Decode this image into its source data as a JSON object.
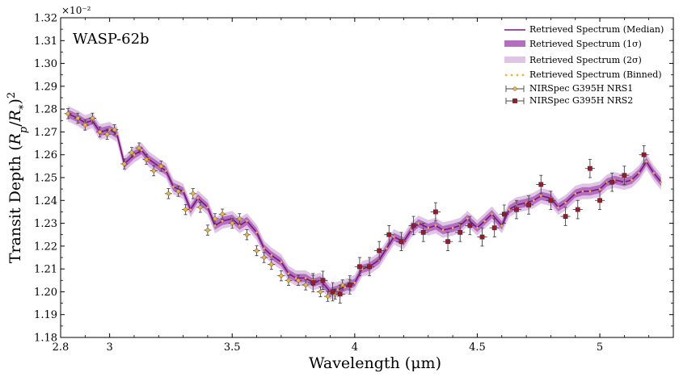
{
  "chart_data": {
    "type": "line",
    "annotation": "WASP-62b",
    "xlabel": "Wavelength (μm)",
    "ylabel": "Transit Depth (R_p/R_*)^2",
    "y_multiplier": "×10⁻²",
    "xlim": [
      2.8,
      5.3
    ],
    "ylim": [
      1.18,
      1.32
    ],
    "x_ticks": [
      2.8,
      3,
      3.5,
      4,
      4.5,
      5
    ],
    "x_tick_labels": [
      "2.8",
      "3",
      "3.5",
      "4",
      "4.5",
      "5"
    ],
    "y_ticks": [
      1.18,
      1.19,
      1.2,
      1.21,
      1.22,
      1.23,
      1.24,
      1.25,
      1.26,
      1.27,
      1.28,
      1.29,
      1.3,
      1.31,
      1.32
    ],
    "y_tick_labels": [
      "1.18",
      "1.19",
      "1.20",
      "1.21",
      "1.22",
      "1.23",
      "1.24",
      "1.25",
      "1.26",
      "1.27",
      "1.28",
      "1.29",
      "1.30",
      "1.31",
      "1.32"
    ],
    "legend": {
      "position": "top-right",
      "entries": [
        "Retrieved Spectrum (Median)",
        "Retrieved Spectrum (1σ)",
        "Retrieved Spectrum (2σ)",
        "Retrieved Spectrum (Binned)",
        "NIRSpec G395H NRS1",
        "NIRSpec G395H NRS2"
      ]
    },
    "colors": {
      "median": "#7b1680",
      "sigma1": "#b56fc0",
      "sigma2": "#dfc4e6",
      "binned": "#f2b233",
      "nrs1": "#f2b233",
      "nrs2": "#a8122c"
    },
    "model": {
      "x": [
        2.83,
        2.87,
        2.9,
        2.93,
        2.96,
        3.0,
        3.03,
        3.06,
        3.1,
        3.13,
        3.16,
        3.2,
        3.23,
        3.26,
        3.3,
        3.33,
        3.36,
        3.4,
        3.43,
        3.46,
        3.5,
        3.53,
        3.56,
        3.6,
        3.63,
        3.66,
        3.7,
        3.73,
        3.76,
        3.8,
        3.83,
        3.86,
        3.9,
        3.93,
        3.96,
        4.0,
        4.03,
        4.06,
        4.1,
        4.13,
        4.16,
        4.2,
        4.23,
        4.26,
        4.3,
        4.33,
        4.36,
        4.4,
        4.43,
        4.46,
        4.5,
        4.53,
        4.56,
        4.6,
        4.63,
        4.66,
        4.7,
        4.73,
        4.76,
        4.8,
        4.83,
        4.86,
        4.9,
        4.93,
        4.96,
        5.0,
        5.03,
        5.06,
        5.1,
        5.13,
        5.16,
        5.19,
        5.22,
        5.25
      ],
      "median": [
        1.278,
        1.276,
        1.274,
        1.275,
        1.27,
        1.271,
        1.269,
        1.256,
        1.26,
        1.262,
        1.258,
        1.255,
        1.253,
        1.246,
        1.244,
        1.236,
        1.241,
        1.237,
        1.229,
        1.231,
        1.232,
        1.229,
        1.231,
        1.226,
        1.219,
        1.216,
        1.213,
        1.208,
        1.206,
        1.206,
        1.204,
        1.205,
        1.2,
        1.201,
        1.202,
        1.204,
        1.21,
        1.211,
        1.214,
        1.219,
        1.224,
        1.222,
        1.227,
        1.23,
        1.228,
        1.229,
        1.227,
        1.228,
        1.229,
        1.232,
        1.228,
        1.231,
        1.234,
        1.229,
        1.236,
        1.238,
        1.239,
        1.24,
        1.242,
        1.241,
        1.237,
        1.239,
        1.243,
        1.244,
        1.244,
        1.245,
        1.248,
        1.249,
        1.248,
        1.249,
        1.252,
        1.257,
        1.252,
        1.248
      ],
      "sigma1_halfwidth": 0.0018,
      "sigma2_halfwidth": 0.0034
    },
    "series": [
      {
        "name": "NIRSpec G395H NRS1",
        "x": [
          2.83,
          2.87,
          2.9,
          2.93,
          2.96,
          2.99,
          3.02,
          3.06,
          3.09,
          3.12,
          3.15,
          3.18,
          3.21,
          3.24,
          3.28,
          3.31,
          3.34,
          3.37,
          3.4,
          3.43,
          3.46,
          3.5,
          3.53,
          3.56,
          3.6,
          3.63,
          3.66,
          3.7,
          3.73,
          3.77,
          3.8,
          3.83,
          3.86,
          3.89,
          3.92,
          3.95,
          3.98
        ],
        "y": [
          1.278,
          1.276,
          1.273,
          1.276,
          1.27,
          1.269,
          1.271,
          1.256,
          1.261,
          1.263,
          1.258,
          1.253,
          1.255,
          1.243,
          1.244,
          1.236,
          1.243,
          1.237,
          1.227,
          1.232,
          1.234,
          1.23,
          1.232,
          1.225,
          1.218,
          1.215,
          1.212,
          1.207,
          1.205,
          1.205,
          1.203,
          1.205,
          1.2,
          1.198,
          1.199,
          1.203,
          1.203
        ],
        "yerr": 0.0022,
        "xerr": 0.015
      },
      {
        "name": "NIRSpec G395H NRS2",
        "x": [
          3.83,
          3.87,
          3.91,
          3.94,
          3.98,
          4.02,
          4.06,
          4.1,
          4.14,
          4.19,
          4.24,
          4.28,
          4.33,
          4.38,
          4.43,
          4.47,
          4.52,
          4.57,
          4.61,
          4.66,
          4.71,
          4.76,
          4.8,
          4.86,
          4.91,
          4.96,
          5.0,
          5.05,
          5.1,
          5.18
        ],
        "y": [
          1.204,
          1.205,
          1.2,
          1.199,
          1.203,
          1.211,
          1.211,
          1.218,
          1.225,
          1.222,
          1.229,
          1.226,
          1.235,
          1.222,
          1.226,
          1.229,
          1.224,
          1.228,
          1.234,
          1.236,
          1.238,
          1.247,
          1.24,
          1.233,
          1.236,
          1.254,
          1.24,
          1.248,
          1.251,
          1.26
        ],
        "yerr": 0.004,
        "xerr": 0.02
      }
    ]
  }
}
